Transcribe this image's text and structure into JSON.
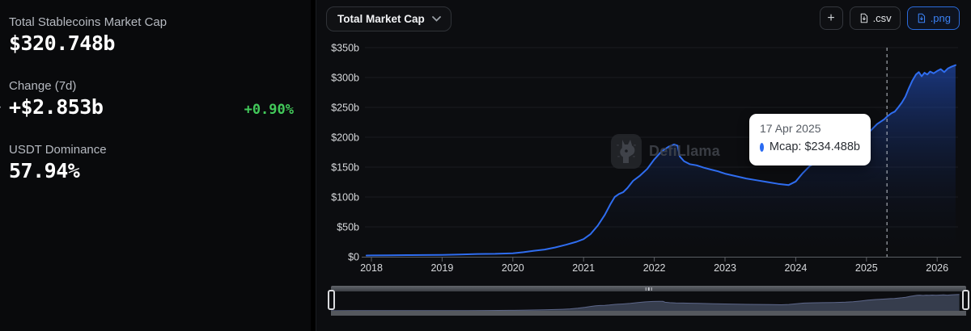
{
  "left_panel": {
    "expand_icon": "chevron-right",
    "stats": [
      {
        "label": "Total Stablecoins Market Cap",
        "value": "$320.748b"
      },
      {
        "label": "Change (7d)",
        "value": "+$2.853b",
        "badge": "+0.90%"
      },
      {
        "label": "USDT Dominance",
        "value": "57.94%"
      }
    ]
  },
  "toolbar": {
    "metric_dropdown": {
      "label": "Total Market Cap"
    },
    "add_button": "+",
    "csv_button": ".csv",
    "png_button": ".png"
  },
  "watermark": {
    "text": "DefiLlama"
  },
  "tooltip": {
    "date": "17 Apr 2025",
    "series": "Mcap:",
    "value": "$234.488b"
  },
  "colors": {
    "accent_blue": "#2f6df0",
    "green": "#42c95a",
    "tooltip_dot": "#2a6bf2",
    "png_button_blue": "#3b82f6",
    "axis_text": "#d7d9dc",
    "grid": "#1a1c20"
  },
  "chart_data": {
    "type": "area",
    "title": "Total Stablecoins Market Cap",
    "series_name": "Mcap",
    "x_unit": "year",
    "ylim": [
      0,
      350
    ],
    "xlim": [
      2017.93,
      2026.35
    ],
    "yticks": [
      0,
      50,
      100,
      150,
      200,
      250,
      300,
      350
    ],
    "ytick_labels": [
      "$0",
      "$50b",
      "$100b",
      "$150b",
      "$200b",
      "$250b",
      "$300b",
      "$350b"
    ],
    "xticks": [
      2018,
      2019,
      2020,
      2021,
      2022,
      2023,
      2024,
      2025,
      2026
    ],
    "xtick_labels": [
      "2018",
      "2019",
      "2020",
      "2021",
      "2022",
      "2023",
      "2024",
      "2025",
      "2026"
    ],
    "grid": "horizontal",
    "line_color": "#2f6df0",
    "legend": "none",
    "crosshair": {
      "t": 2025.29,
      "value": 234.488,
      "label": "17 Apr 2025"
    },
    "points_t": [
      2017.93,
      2018.0,
      2018.25,
      2018.5,
      2018.75,
      2019.0,
      2019.25,
      2019.5,
      2019.75,
      2020.0,
      2020.15,
      2020.3,
      2020.45,
      2020.6,
      2020.75,
      2020.9,
      2021.0,
      2021.1,
      2021.2,
      2021.3,
      2021.38,
      2021.44,
      2021.5,
      2021.56,
      2021.62,
      2021.7,
      2021.8,
      2021.9,
      2022.0,
      2022.1,
      2022.2,
      2022.28,
      2022.33,
      2022.36,
      2022.42,
      2022.5,
      2022.6,
      2022.7,
      2022.8,
      2022.9,
      2023.0,
      2023.15,
      2023.3,
      2023.45,
      2023.6,
      2023.75,
      2023.9,
      2024.0,
      2024.1,
      2024.2,
      2024.3,
      2024.45,
      2024.6,
      2024.75,
      2024.85,
      2024.95,
      2025.05,
      2025.15,
      2025.25,
      2025.29,
      2025.35,
      2025.4,
      2025.45,
      2025.5,
      2025.55,
      2025.6,
      2025.65,
      2025.7,
      2025.74,
      2025.78,
      2025.82,
      2025.86,
      2025.9,
      2025.95,
      2026.0,
      2026.05,
      2026.1,
      2026.15,
      2026.2,
      2026.26
    ],
    "points_v": [
      2.0,
      2.2,
      2.4,
      2.7,
      2.8,
      3.0,
      3.6,
      4.6,
      4.9,
      5.8,
      7.5,
      10,
      12,
      15.5,
      20,
      25,
      29.5,
      38,
      52,
      70,
      88,
      100,
      105,
      108,
      115,
      127,
      136,
      147,
      163,
      176,
      184,
      188,
      186,
      168,
      160,
      155,
      153,
      149,
      146,
      143,
      139,
      135,
      131,
      128,
      125,
      122,
      120,
      126,
      140,
      152,
      158,
      161,
      164,
      170,
      178,
      193,
      210,
      222,
      230,
      234.5,
      240,
      243,
      250,
      258,
      268,
      282,
      295,
      305,
      309,
      302,
      308,
      305,
      310,
      307,
      311,
      314,
      309,
      315,
      318,
      320.7
    ]
  }
}
